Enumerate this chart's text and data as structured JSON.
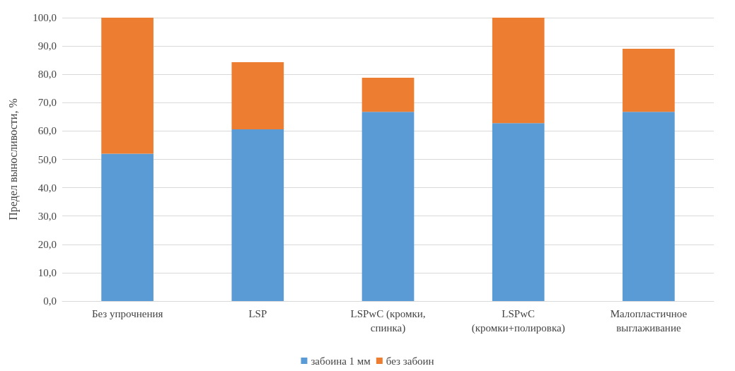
{
  "chart_data": {
    "type": "bar",
    "stacked": true,
    "ylabel": "Предел выносливости, %",
    "categories": [
      "Без упрочнения",
      "LSP",
      "LSPwC (кромки, спинка)",
      "LSPwC (кромки+полировка)",
      "Малопластичное выглаживание"
    ],
    "series": [
      {
        "name": "забоина 1 мм",
        "color": "#5b9bd5",
        "values": [
          52,
          60.6,
          66.8,
          62.8,
          66.8
        ]
      },
      {
        "name": "без забоин",
        "color": "#ed7d31",
        "values": [
          48,
          23.7,
          12,
          37.2,
          22.2
        ]
      }
    ],
    "ylim": [
      0,
      100
    ],
    "yticks": [
      {
        "value": 0,
        "label": "0,0"
      },
      {
        "value": 10,
        "label": "10,0"
      },
      {
        "value": 20,
        "label": "20,0"
      },
      {
        "value": 30,
        "label": "30,0"
      },
      {
        "value": 40,
        "label": "40,0"
      },
      {
        "value": 50,
        "label": "50,0"
      },
      {
        "value": 60,
        "label": "60,0"
      },
      {
        "value": 70,
        "label": "70,0"
      },
      {
        "value": 80,
        "label": "80,0"
      },
      {
        "value": 90,
        "label": "90,0"
      },
      {
        "value": 100,
        "label": "100,0"
      }
    ],
    "grid": "y",
    "legend": "bottom"
  }
}
